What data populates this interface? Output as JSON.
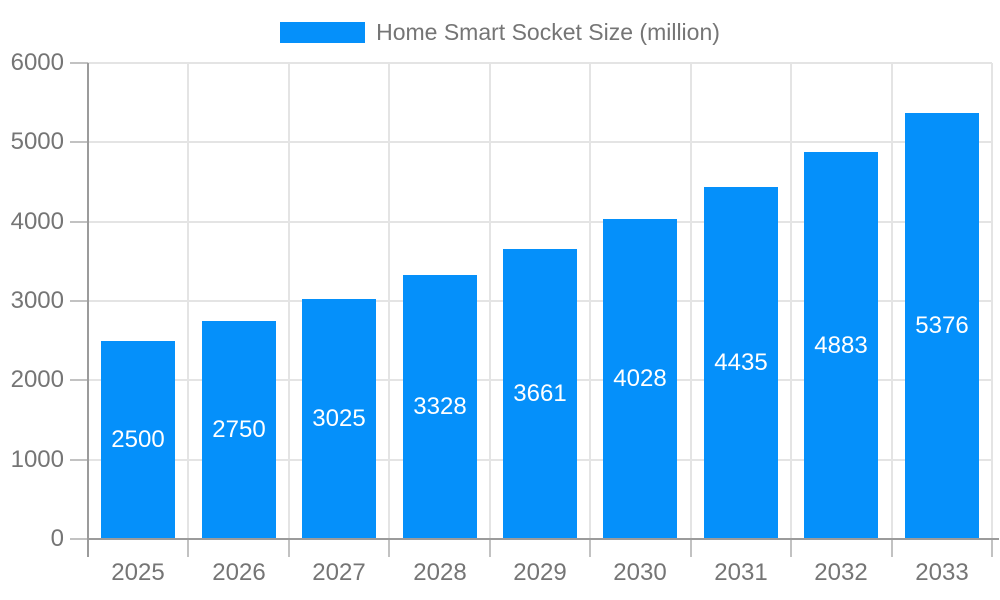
{
  "chart_data": {
    "type": "bar",
    "title": "Home Smart Socket Size (million)",
    "categories": [
      "2025",
      "2026",
      "2027",
      "2028",
      "2029",
      "2030",
      "2031",
      "2032",
      "2033"
    ],
    "values": [
      2500,
      2750,
      3025,
      3328,
      3661,
      4028,
      4435,
      4883,
      5376
    ],
    "xlabel": "",
    "ylabel": "",
    "ylim": [
      0,
      6000
    ],
    "ytick_step": 1000,
    "ytick_labels": [
      "0",
      "1000",
      "2000",
      "3000",
      "4000",
      "5000",
      "6000"
    ],
    "grid": true,
    "legend_position": "top",
    "colors": {
      "bar": "#0590fa",
      "value_label": "#ffffff",
      "axis_label": "#757575",
      "gridline": "#e4e4e4",
      "axis_line": "#9b9b9b",
      "tick": "#c2c2c2"
    }
  }
}
